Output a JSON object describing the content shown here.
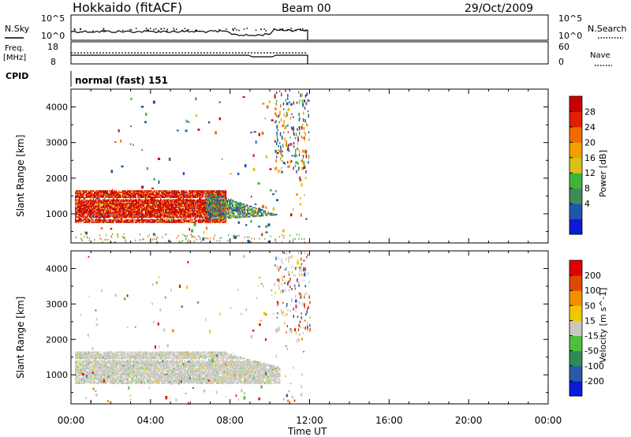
{
  "header": {
    "title": "Hokkaido (fitACF)",
    "beam": "Beam 00",
    "date": "29/Oct/2009"
  },
  "noise_panel": {
    "left_label": "N.Sky",
    "right_label": "N.Search",
    "left_ticks": [
      "10^5",
      "10^0"
    ],
    "right_ticks": [
      "10^5",
      "10^0"
    ]
  },
  "freq_panel": {
    "left_label_1": "Freq.",
    "left_label_2": "[MHz]",
    "right_label": "Nave",
    "left_ticks": [
      "18",
      "8"
    ],
    "right_ticks": [
      "60",
      "0"
    ]
  },
  "cpid": {
    "label": "CPID",
    "mode": "normal (fast) 151"
  },
  "chart_data": [
    {
      "type": "heatmap",
      "name": "Power",
      "ylabel": "Slant Range [km]",
      "yticks": [
        "4000",
        "3000",
        "2000",
        "1000"
      ],
      "ylim": [
        180,
        4500
      ],
      "colorbar_label": "Power [dB]",
      "colorbar_ticks": [
        "28",
        "24",
        "20",
        "16",
        "12",
        "8",
        "4"
      ],
      "colorbar_colors": [
        "#0a1ad8",
        "#1f56a8",
        "#3f8a5a",
        "#3fb43a",
        "#d8c01a",
        "#f0a000",
        "#f06a00",
        "#e02000",
        "#c80000"
      ],
      "regions": [
        {
          "t": [
            0.2,
            8.0
          ],
          "r": [
            750,
            1650
          ],
          "level": "strong"
        },
        {
          "t": [
            6.8,
            10.5
          ],
          "r": [
            800,
            1500
          ],
          "level": "medium"
        },
        {
          "t": [
            10.0,
            12.0
          ],
          "r": [
            2500,
            4400
          ],
          "level": "weak"
        }
      ]
    },
    {
      "type": "heatmap",
      "name": "Velocity",
      "ylabel": "Slant Range [km]",
      "yticks": [
        "4000",
        "3000",
        "2000",
        "1000"
      ],
      "ylim": [
        180,
        4500
      ],
      "colorbar_label": "Velocity [m s^-1]",
      "colorbar_ticks": [
        "200",
        "100",
        "50",
        "15",
        "-15",
        "-50",
        "-100",
        "-200"
      ],
      "colorbar_colors": [
        "#0a1ad8",
        "#2a5aa8",
        "#2f8a5a",
        "#4cc03a",
        "#c8c8c0",
        "#f0c800",
        "#f09000",
        "#e04800",
        "#e00000"
      ],
      "regions": [
        {
          "t": [
            0.2,
            10.5
          ],
          "r": [
            750,
            1650
          ],
          "level": "near-zero"
        }
      ]
    }
  ],
  "time_axis": {
    "label": "Time UT",
    "ticks": [
      "00:00",
      "04:00",
      "08:00",
      "12:00",
      "16:00",
      "20:00",
      "00:00"
    ],
    "hours": [
      0,
      4,
      8,
      12,
      16,
      20,
      24
    ]
  }
}
